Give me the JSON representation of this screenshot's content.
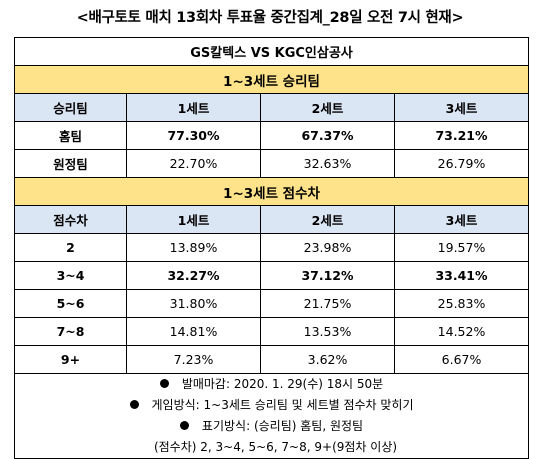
{
  "title": "<배구토토 매치 13회차 투표율 중간집계_28일 오전 7시 현재>",
  "match": "GS칼텍스 VS KGC인삼공사",
  "win_section": {
    "band": "1~3세트 승리팀",
    "headers": [
      "승리팀",
      "1세트",
      "2세트",
      "3세트"
    ],
    "rows": [
      {
        "label": "홈팀",
        "values": [
          "77.30%",
          "67.37%",
          "73.21%"
        ],
        "bold": true
      },
      {
        "label": "원정팀",
        "values": [
          "22.70%",
          "32.63%",
          "26.79%"
        ],
        "bold": false
      }
    ]
  },
  "score_section": {
    "band": "1~3세트 점수차",
    "headers": [
      "점수차",
      "1세트",
      "2세트",
      "3세트"
    ],
    "rows": [
      {
        "label": "2",
        "values": [
          "13.89%",
          "23.98%",
          "19.57%"
        ],
        "bold": false
      },
      {
        "label": "3~4",
        "values": [
          "32.27%",
          "37.12%",
          "33.41%"
        ],
        "bold": true
      },
      {
        "label": "5~6",
        "values": [
          "31.80%",
          "21.75%",
          "25.83%"
        ],
        "bold": false
      },
      {
        "label": "7~8",
        "values": [
          "14.81%",
          "13.53%",
          "14.52%"
        ],
        "bold": false
      },
      {
        "label": "9+",
        "values": [
          "7.23%",
          "3.62%",
          "6.67%"
        ],
        "bold": false
      }
    ]
  },
  "notes": [
    "발매마감: 2020. 1. 29(수) 18시 50분",
    "게임방식: 1~3세트 승리팀 및 세트별 점수차 맞히기",
    "표기방식: (승리팀) 홈팀, 원정팀"
  ],
  "notes_continuation": "(점수차) 2, 3~4, 5~6, 7~8, 9+(9점차 이상)"
}
